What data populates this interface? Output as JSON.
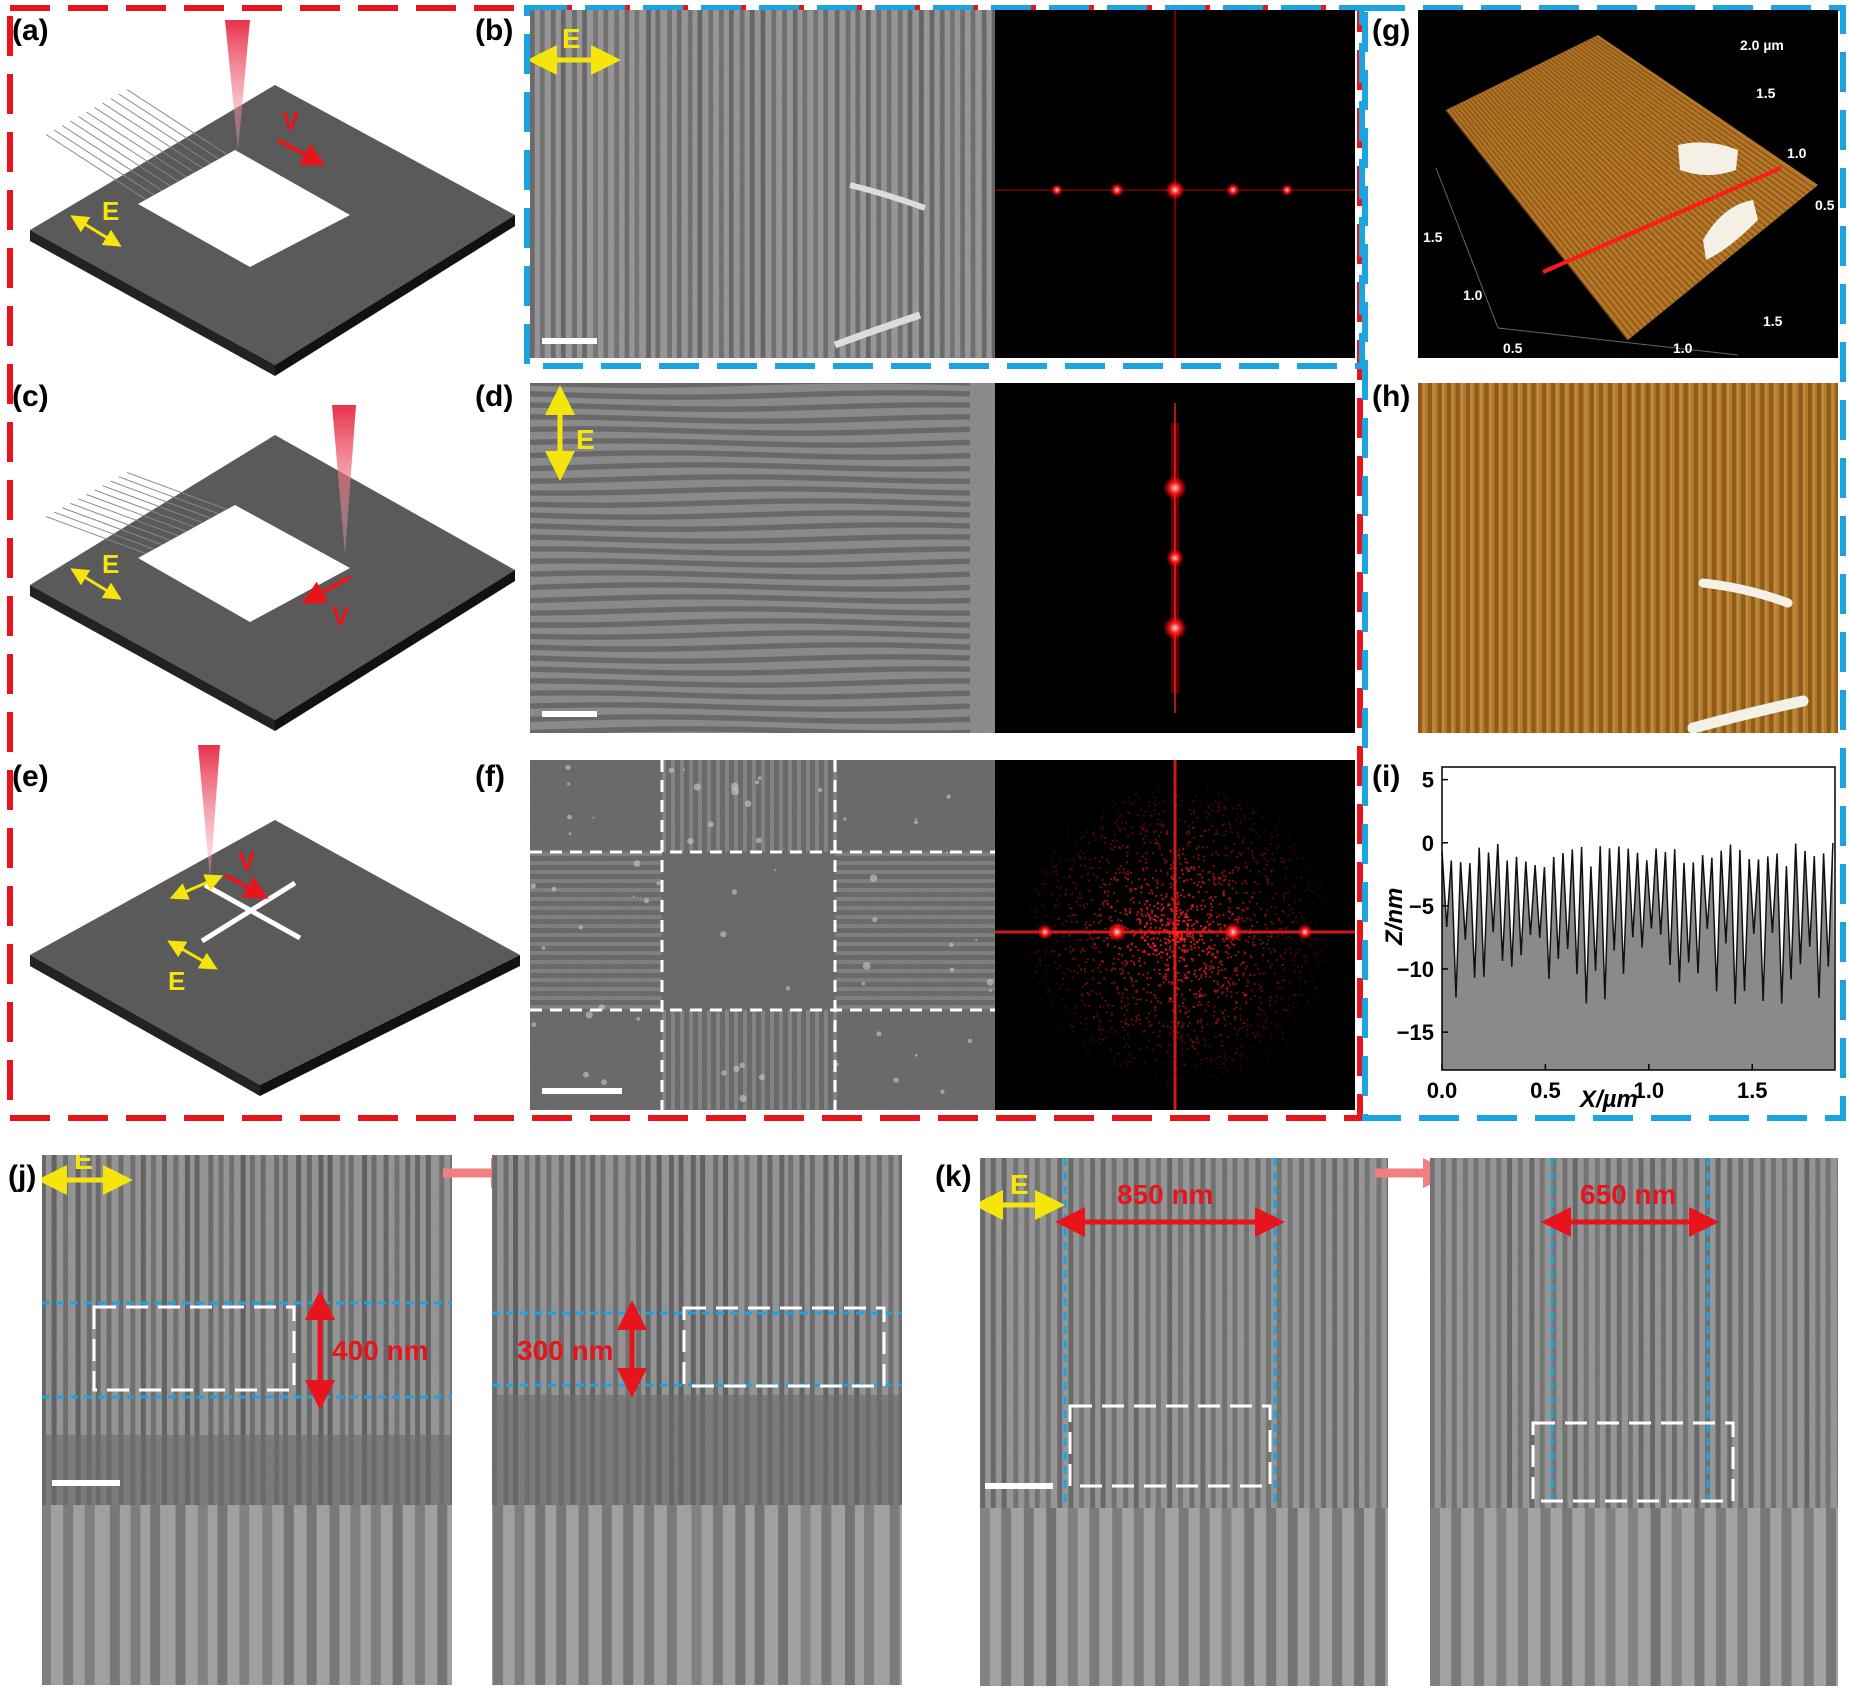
{
  "panels": {
    "a": "(a)",
    "b": "(b)",
    "c": "(c)",
    "d": "(d)",
    "e": "(e)",
    "f": "(f)",
    "g": "(g)",
    "h": "(h)",
    "i": "(i)",
    "j": "(j)",
    "k": "(k)"
  },
  "symbols": {
    "field": "E",
    "velocity": "V"
  },
  "afm3d_ticks": {
    "top": "2.0 µm",
    "right": [
      "1.5",
      "1.0",
      "0.5"
    ],
    "left": [
      "1.5",
      "1.0",
      "0.5"
    ],
    "bottom": [
      "1.5",
      "1.0"
    ]
  },
  "chart_data": {
    "type": "line",
    "title": "",
    "xlabel": "X/µm",
    "ylabel": "Z/nm",
    "xlim": [
      0.0,
      1.9
    ],
    "ylim": [
      -18,
      6
    ],
    "xticks": [
      "0.0",
      "0.5",
      "1.0",
      "1.5"
    ],
    "yticks": [
      "5",
      "0",
      "−5",
      "−10",
      "−15"
    ],
    "series": [
      {
        "period": 0.045,
        "peak_range": [
          -2,
          0
        ],
        "valley_range": [
          -13,
          -6
        ]
      }
    ]
  },
  "widths": {
    "j_before": "400 nm",
    "j_after": "300 nm",
    "k_before": "850 nm",
    "k_after": "650 nm"
  },
  "colors": {
    "frame_red": "#e8141c",
    "frame_blue": "#1ba4e0",
    "arrow_yellow": "#f5e50c",
    "arrow_red": "#e8141c",
    "afm_orange": "#b8782a",
    "sample_gray": "#5a5a5a"
  }
}
